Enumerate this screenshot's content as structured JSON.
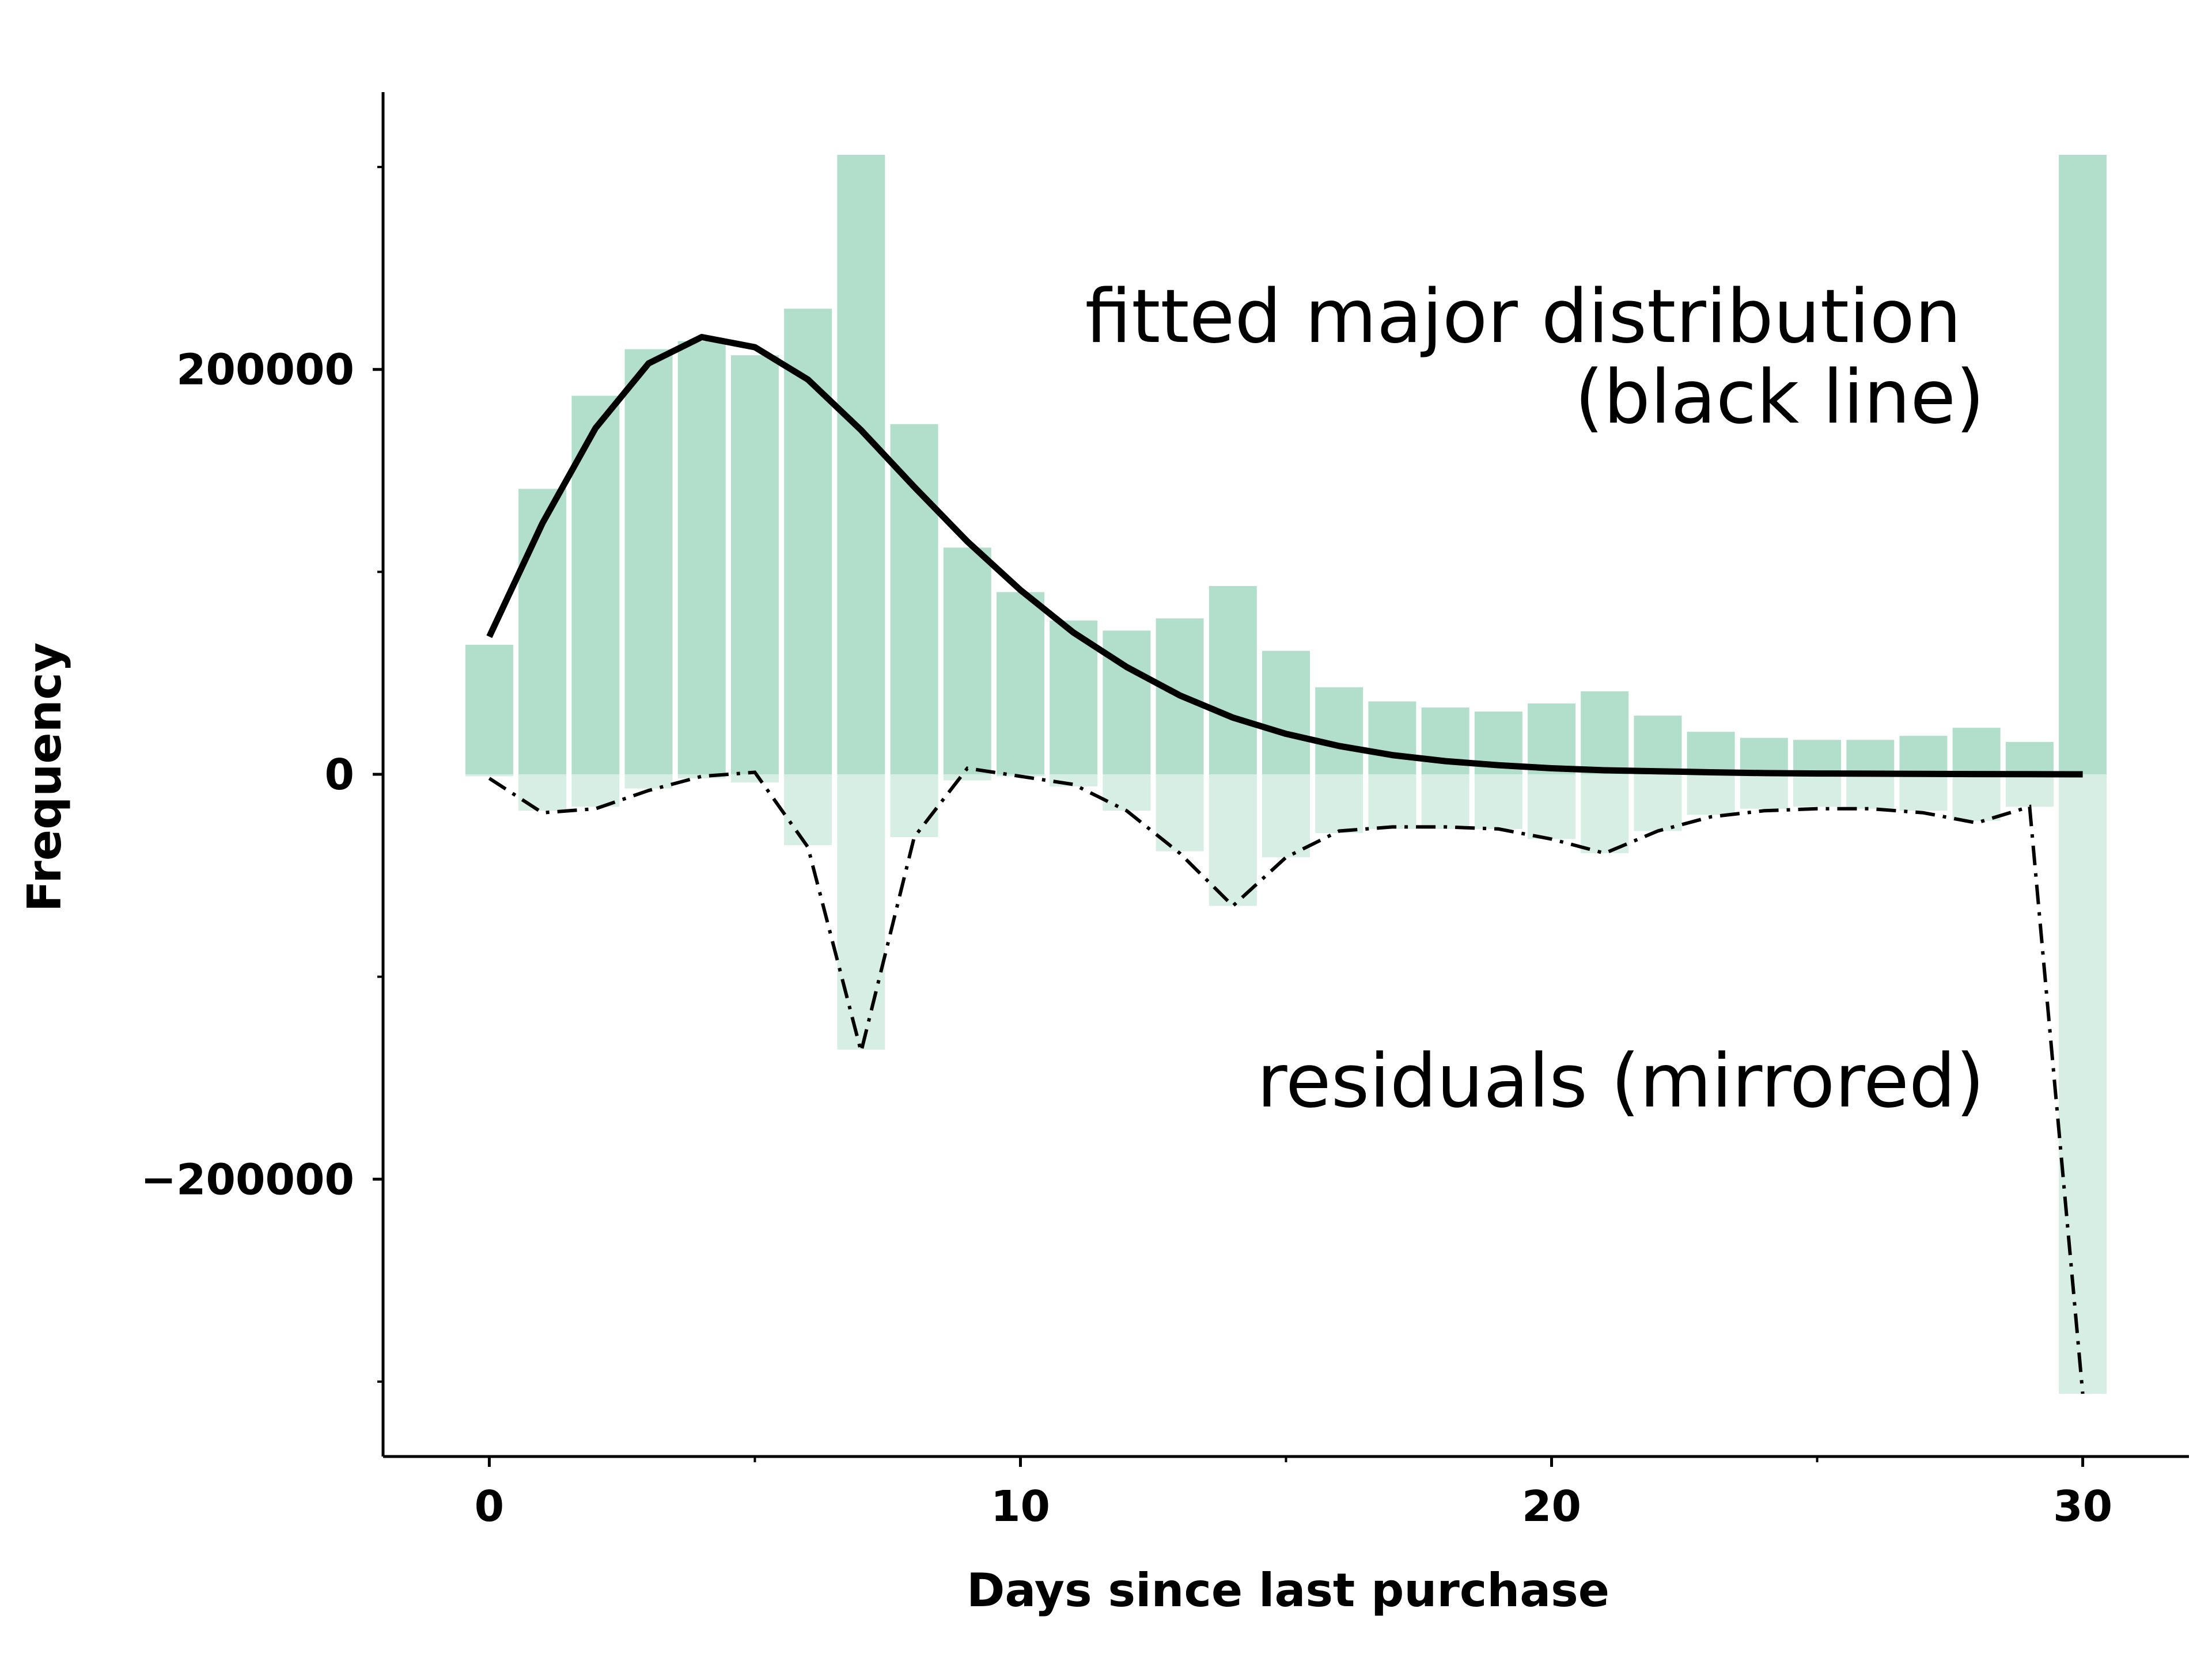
{
  "chart_data": {
    "type": "bar",
    "xlabel": "Days since last purchase",
    "ylabel": "Frequency",
    "xlim": [
      -2,
      32
    ],
    "ylim": [
      -337000,
      337000
    ],
    "x_major_ticks": [
      0,
      10,
      20,
      30
    ],
    "x_minor_ticks": [
      5,
      15,
      25
    ],
    "y_major_ticks": [
      -200000,
      0,
      200000
    ],
    "y_minor_ticks": [
      -300000,
      -100000,
      100000,
      300000
    ],
    "grid": false,
    "annotations": [
      {
        "lines": [
          "fitted major distribution",
          "(black line)"
        ]
      },
      {
        "lines": [
          "residuals (mirrored)"
        ]
      }
    ],
    "colors": {
      "histogram": "#b2dfcc",
      "residual_bars": "#d6eee4",
      "fit_line": "#000000",
      "residual_line": "#000000"
    },
    "x": [
      0,
      1,
      2,
      3,
      4,
      5,
      6,
      7,
      8,
      9,
      10,
      11,
      12,
      13,
      14,
      15,
      16,
      17,
      18,
      19,
      20,
      21,
      22,
      23,
      24,
      25,
      26,
      27,
      28,
      29,
      30
    ],
    "series": [
      {
        "kind": "histogram",
        "values": [
          64000,
          141000,
          187000,
          210000,
          214000,
          207000,
          230000,
          306000,
          173000,
          112000,
          90000,
          76000,
          71000,
          77000,
          93000,
          61000,
          43000,
          36000,
          33000,
          31000,
          35000,
          41000,
          29000,
          21000,
          18000,
          17000,
          17000,
          19000,
          23000,
          16000,
          306000
        ]
      },
      {
        "kind": "fit-line",
        "values": [
          68000,
          124000,
          171000,
          203000,
          216000,
          211000,
          195000,
          170000,
          142000,
          115000,
          91000,
          70000,
          53000,
          39000,
          28000,
          20000,
          14000,
          9500,
          6500,
          4500,
          3000,
          2000,
          1500,
          1000,
          600,
          400,
          300,
          200,
          100,
          50,
          10
        ]
      },
      {
        "kind": "residual-bars",
        "values": [
          -1000,
          -18000,
          -16000,
          -7000,
          -2000,
          -4000,
          -35000,
          -136000,
          -31000,
          -3000,
          -1000,
          -6000,
          -18000,
          -38000,
          -65000,
          -41000,
          -29000,
          -27000,
          -27000,
          -27000,
          -32000,
          -39000,
          -28000,
          -20000,
          -17000,
          -16000,
          -17000,
          -18000,
          -23000,
          -16000,
          -306000
        ]
      },
      {
        "kind": "residual-line",
        "values": [
          -2000,
          -19000,
          -17000,
          -8000,
          -1000,
          1000,
          -36000,
          -137000,
          -31000,
          3000,
          -1000,
          -5000,
          -18000,
          -39000,
          -65000,
          -41000,
          -28000,
          -26000,
          -26000,
          -27000,
          -32000,
          -39000,
          -28000,
          -21000,
          -18000,
          -17000,
          -17000,
          -19000,
          -24000,
          -16000,
          -306000
        ]
      }
    ]
  }
}
